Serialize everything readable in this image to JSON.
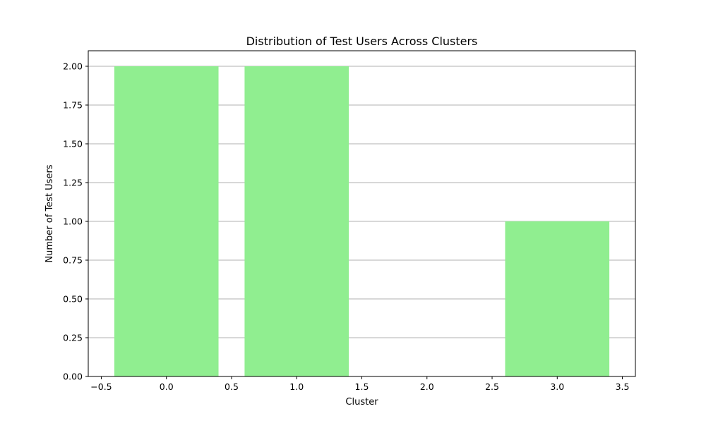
{
  "chart_data": {
    "type": "bar",
    "title": "Distribution of Test Users Across Clusters",
    "xlabel": "Cluster",
    "ylabel": "Number of Test Users",
    "x": [
      0,
      1,
      3
    ],
    "values": [
      2,
      2,
      1
    ],
    "bar_width": 0.8,
    "bar_color": "#90EE90",
    "grid_color": "#b0b0b0",
    "grid": "y",
    "xlim": [
      -0.6,
      3.6
    ],
    "ylim": [
      0,
      2.1
    ],
    "xticks": [
      -0.5,
      0.0,
      0.5,
      1.0,
      1.5,
      2.0,
      2.5,
      3.0,
      3.5
    ],
    "xtick_labels": [
      "−0.5",
      "0.0",
      "0.5",
      "1.0",
      "1.5",
      "2.0",
      "2.5",
      "3.0",
      "3.5"
    ],
    "yticks": [
      0.0,
      0.25,
      0.5,
      0.75,
      1.0,
      1.25,
      1.5,
      1.75,
      2.0
    ],
    "ytick_labels": [
      "0.00",
      "0.25",
      "0.50",
      "0.75",
      "1.00",
      "1.25",
      "1.50",
      "1.75",
      "2.00"
    ]
  }
}
